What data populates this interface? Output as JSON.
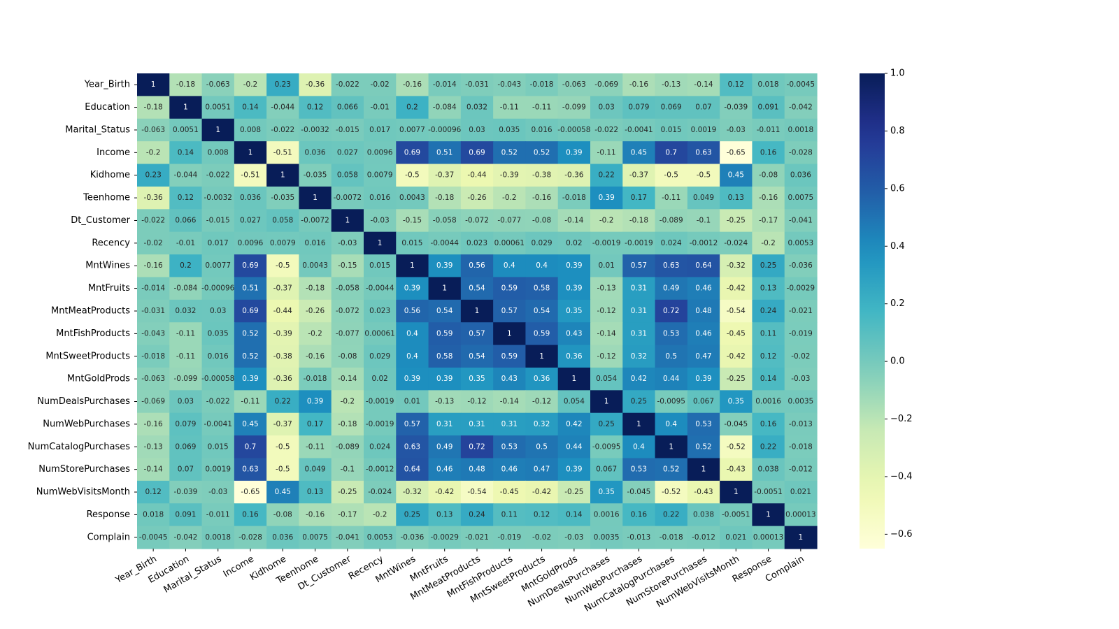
{
  "chart_data": {
    "type": "heatmap",
    "variables": [
      "Year_Birth",
      "Education",
      "Marital_Status",
      "Income",
      "Kidhome",
      "Teenhome",
      "Dt_Customer",
      "Recency",
      "MntWines",
      "MntFruits",
      "MntMeatProducts",
      "MntFishProducts",
      "MntSweetProducts",
      "MntGoldProds",
      "NumDealsPurchases",
      "NumWebPurchases",
      "NumCatalogPurchases",
      "NumStorePurchases",
      "NumWebVisitsMonth",
      "Response",
      "Complain"
    ],
    "cell_labels": [
      [
        "1",
        "-0.18",
        "-0.063",
        "-0.2",
        "0.23",
        "-0.36",
        "-0.022",
        "-0.02",
        "-0.16",
        "-0.014",
        "-0.031",
        "-0.043",
        "-0.018",
        "-0.063",
        "-0.069",
        "-0.16",
        "-0.13",
        "-0.14",
        "0.12",
        "0.018",
        "-0.0045"
      ],
      [
        "-0.18",
        "1",
        "0.0051",
        "0.14",
        "-0.044",
        "0.12",
        "0.066",
        "-0.01",
        "0.2",
        "-0.084",
        "0.032",
        "-0.11",
        "-0.11",
        "-0.099",
        "0.03",
        "0.079",
        "0.069",
        "0.07",
        "-0.039",
        "0.091",
        "-0.042"
      ],
      [
        "-0.063",
        "0.0051",
        "1",
        "0.008",
        "-0.022",
        "-0.0032",
        "-0.015",
        "0.017",
        "0.0077",
        "-0.00096",
        "0.03",
        "0.035",
        "0.016",
        "-0.00058",
        "-0.022",
        "-0.0041",
        "0.015",
        "0.0019",
        "-0.03",
        "-0.011",
        "0.0018"
      ],
      [
        "-0.2",
        "0.14",
        "0.008",
        "1",
        "-0.51",
        "0.036",
        "0.027",
        "0.0096",
        "0.69",
        "0.51",
        "0.69",
        "0.52",
        "0.52",
        "0.39",
        "-0.11",
        "0.45",
        "0.7",
        "0.63",
        "-0.65",
        "0.16",
        "-0.028"
      ],
      [
        "0.23",
        "-0.044",
        "-0.022",
        "-0.51",
        "1",
        "-0.035",
        "0.058",
        "0.0079",
        "-0.5",
        "-0.37",
        "-0.44",
        "-0.39",
        "-0.38",
        "-0.36",
        "0.22",
        "-0.37",
        "-0.5",
        "-0.5",
        "0.45",
        "-0.08",
        "0.036"
      ],
      [
        "-0.36",
        "0.12",
        "-0.0032",
        "0.036",
        "-0.035",
        "1",
        "-0.0072",
        "0.016",
        "0.0043",
        "-0.18",
        "-0.26",
        "-0.2",
        "-0.16",
        "-0.018",
        "0.39",
        "0.17",
        "-0.11",
        "0.049",
        "0.13",
        "-0.16",
        "0.0075"
      ],
      [
        "-0.022",
        "0.066",
        "-0.015",
        "0.027",
        "0.058",
        "-0.0072",
        "1",
        "-0.03",
        "-0.15",
        "-0.058",
        "-0.072",
        "-0.077",
        "-0.08",
        "-0.14",
        "-0.2",
        "-0.18",
        "-0.089",
        "-0.1",
        "-0.25",
        "-0.17",
        "-0.041"
      ],
      [
        "-0.02",
        "-0.01",
        "0.017",
        "0.0096",
        "0.0079",
        "0.016",
        "-0.03",
        "1",
        "0.015",
        "-0.0044",
        "0.023",
        "0.00061",
        "0.029",
        "0.02",
        "-0.0019",
        "-0.0019",
        "0.024",
        "-0.0012",
        "-0.024",
        "-0.2",
        "0.0053"
      ],
      [
        "-0.16",
        "0.2",
        "0.0077",
        "0.69",
        "-0.5",
        "0.0043",
        "-0.15",
        "0.015",
        "1",
        "0.39",
        "0.56",
        "0.4",
        "0.4",
        "0.39",
        "0.01",
        "0.57",
        "0.63",
        "0.64",
        "-0.32",
        "0.25",
        "-0.036"
      ],
      [
        "-0.014",
        "-0.084",
        "-0.00096",
        "0.51",
        "-0.37",
        "-0.18",
        "-0.058",
        "-0.0044",
        "0.39",
        "1",
        "0.54",
        "0.59",
        "0.58",
        "0.39",
        "-0.13",
        "0.31",
        "0.49",
        "0.46",
        "-0.42",
        "0.13",
        "-0.0029"
      ],
      [
        "-0.031",
        "0.032",
        "0.03",
        "0.69",
        "-0.44",
        "-0.26",
        "-0.072",
        "0.023",
        "0.56",
        "0.54",
        "1",
        "0.57",
        "0.54",
        "0.35",
        "-0.12",
        "0.31",
        "0.72",
        "0.48",
        "-0.54",
        "0.24",
        "-0.021"
      ],
      [
        "-0.043",
        "-0.11",
        "0.035",
        "0.52",
        "-0.39",
        "-0.2",
        "-0.077",
        "0.00061",
        "0.4",
        "0.59",
        "0.57",
        "1",
        "0.59",
        "0.43",
        "-0.14",
        "0.31",
        "0.53",
        "0.46",
        "-0.45",
        "0.11",
        "-0.019"
      ],
      [
        "-0.018",
        "-0.11",
        "0.016",
        "0.52",
        "-0.38",
        "-0.16",
        "-0.08",
        "0.029",
        "0.4",
        "0.58",
        "0.54",
        "0.59",
        "1",
        "0.36",
        "-0.12",
        "0.32",
        "0.5",
        "0.47",
        "-0.42",
        "0.12",
        "-0.02"
      ],
      [
        "-0.063",
        "-0.099",
        "-0.00058",
        "0.39",
        "-0.36",
        "-0.018",
        "-0.14",
        "0.02",
        "0.39",
        "0.39",
        "0.35",
        "0.43",
        "0.36",
        "1",
        "0.054",
        "0.42",
        "0.44",
        "0.39",
        "-0.25",
        "0.14",
        "-0.03"
      ],
      [
        "-0.069",
        "0.03",
        "-0.022",
        "-0.11",
        "0.22",
        "0.39",
        "-0.2",
        "-0.0019",
        "0.01",
        "-0.13",
        "-0.12",
        "-0.14",
        "-0.12",
        "0.054",
        "1",
        "0.25",
        "-0.0095",
        "0.067",
        "0.35",
        "0.0016",
        "0.0035"
      ],
      [
        "-0.16",
        "0.079",
        "-0.0041",
        "0.45",
        "-0.37",
        "0.17",
        "-0.18",
        "-0.0019",
        "0.57",
        "0.31",
        "0.31",
        "0.31",
        "0.32",
        "0.42",
        "0.25",
        "1",
        "0.4",
        "0.53",
        "-0.045",
        "0.16",
        "-0.013"
      ],
      [
        "-0.13",
        "0.069",
        "0.015",
        "0.7",
        "-0.5",
        "-0.11",
        "-0.089",
        "0.024",
        "0.63",
        "0.49",
        "0.72",
        "0.53",
        "0.5",
        "0.44",
        "-0.0095",
        "0.4",
        "1",
        "0.52",
        "-0.52",
        "0.22",
        "-0.018"
      ],
      [
        "-0.14",
        "0.07",
        "0.0019",
        "0.63",
        "-0.5",
        "0.049",
        "-0.1",
        "-0.0012",
        "0.64",
        "0.46",
        "0.48",
        "0.46",
        "0.47",
        "0.39",
        "0.067",
        "0.53",
        "0.52",
        "1",
        "-0.43",
        "0.038",
        "-0.012"
      ],
      [
        "0.12",
        "-0.039",
        "-0.03",
        "-0.65",
        "0.45",
        "0.13",
        "-0.25",
        "-0.024",
        "-0.32",
        "-0.42",
        "-0.54",
        "-0.45",
        "-0.42",
        "-0.25",
        "0.35",
        "-0.045",
        "-0.52",
        "-0.43",
        "1",
        "-0.0051",
        "0.021"
      ],
      [
        "0.018",
        "0.091",
        "-0.011",
        "0.16",
        "-0.08",
        "-0.16",
        "-0.17",
        "-0.2",
        "0.25",
        "0.13",
        "0.24",
        "0.11",
        "0.12",
        "0.14",
        "0.0016",
        "0.16",
        "0.22",
        "0.038",
        "-0.0051",
        "1",
        "0.00013"
      ],
      [
        "-0.0045",
        "-0.042",
        "0.0018",
        "-0.028",
        "0.036",
        "0.0075",
        "-0.041",
        "0.0053",
        "-0.036",
        "-0.0029",
        "-0.021",
        "-0.019",
        "-0.02",
        "-0.03",
        "0.0035",
        "-0.013",
        "-0.018",
        "-0.012",
        "0.021",
        "0.00013",
        "1"
      ]
    ],
    "colormap": "YlGnBu",
    "vmin": -0.65,
    "vmax": 1.0,
    "colorbar": {
      "ticks": [
        1.0,
        0.8,
        0.6,
        0.4,
        0.2,
        0.0,
        -0.2,
        -0.4,
        -0.6
      ],
      "tick_labels": [
        "1.0",
        "0.8",
        "0.6",
        "0.4",
        "0.2",
        "0.0",
        "−0.2",
        "−0.4",
        "−0.6"
      ]
    },
    "title": "",
    "xlabel": "",
    "ylabel": ""
  }
}
